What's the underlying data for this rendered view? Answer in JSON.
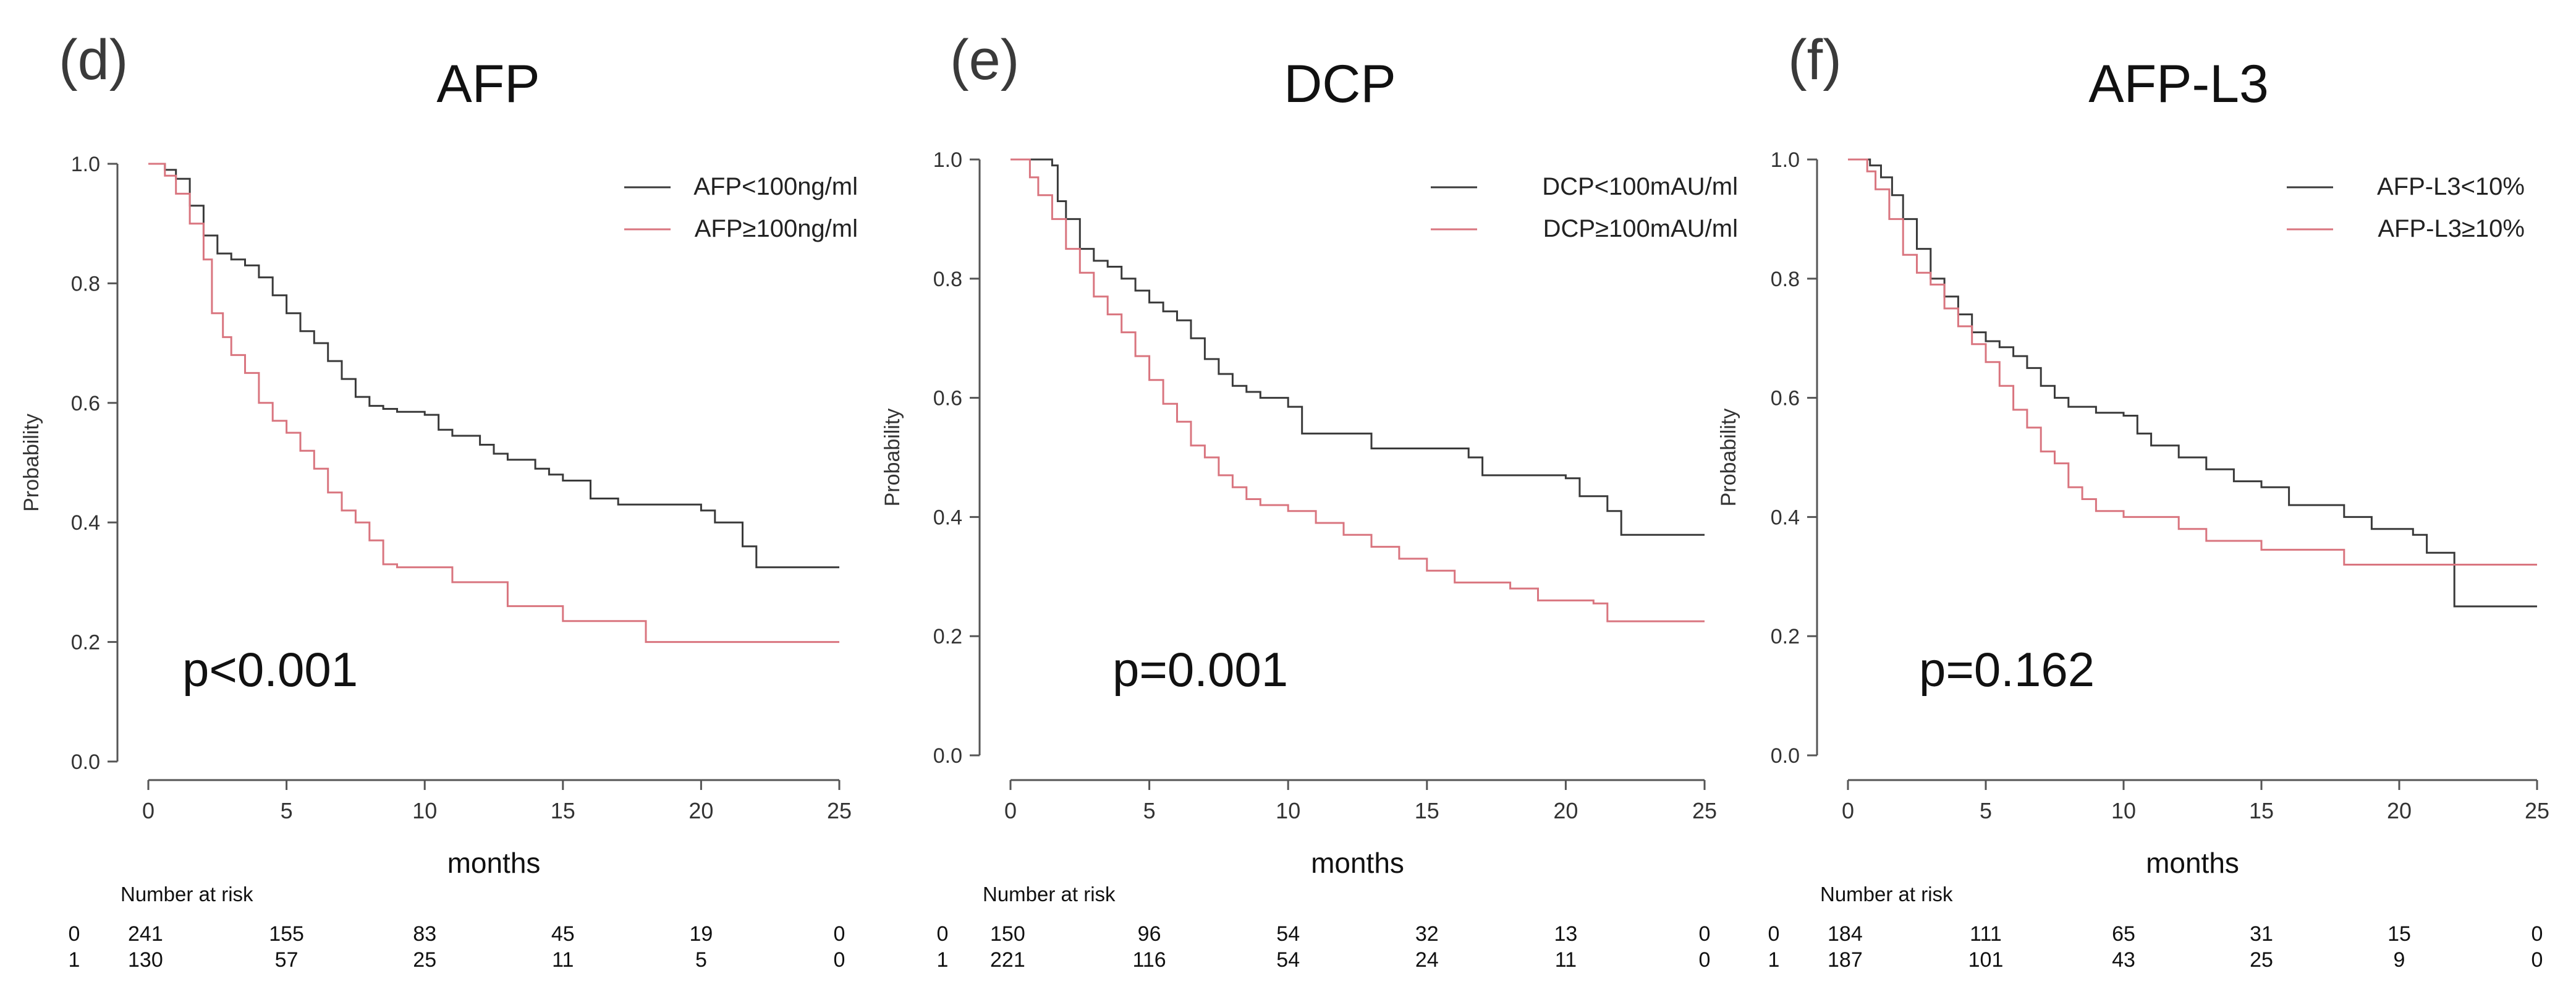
{
  "chart_data": [
    {
      "type": "line",
      "subtype": "kaplan-meier",
      "panel_label": "(d)",
      "title": "AFP",
      "xlabel": "months",
      "ylabel": "Probability",
      "xlim": [
        0,
        25
      ],
      "ylim": [
        0.0,
        1.0
      ],
      "x_ticks": [
        "0",
        "5",
        "10",
        "15",
        "20",
        "25"
      ],
      "y_ticks": [
        "0.0",
        "0.2",
        "0.4",
        "0.6",
        "0.8",
        "1.0"
      ],
      "grid": false,
      "legend_position": "top-right",
      "p_value": "p<0.001",
      "risk_table": {
        "title": "Number at risk",
        "rows": [
          {
            "group": "0",
            "values": [
              "241",
              "155",
              "83",
              "45",
              "19",
              "0"
            ]
          },
          {
            "group": "1",
            "values": [
              "130",
              "57",
              "25",
              "11",
              "5",
              "0"
            ]
          }
        ]
      },
      "series": [
        {
          "name": "AFP<100ng/ml",
          "color": "#3a3a3a",
          "points": [
            [
              0,
              1.0
            ],
            [
              0.6,
              0.99
            ],
            [
              1.0,
              0.975
            ],
            [
              1.5,
              0.93
            ],
            [
              2.0,
              0.88
            ],
            [
              2.5,
              0.85
            ],
            [
              3.0,
              0.84
            ],
            [
              3.5,
              0.83
            ],
            [
              4.0,
              0.81
            ],
            [
              4.5,
              0.78
            ],
            [
              5.0,
              0.75
            ],
            [
              5.5,
              0.72
            ],
            [
              6.0,
              0.7
            ],
            [
              6.5,
              0.67
            ],
            [
              7.0,
              0.64
            ],
            [
              7.5,
              0.61
            ],
            [
              8.0,
              0.595
            ],
            [
              8.5,
              0.59
            ],
            [
              9.0,
              0.585
            ],
            [
              10.0,
              0.58
            ],
            [
              10.5,
              0.555
            ],
            [
              11.0,
              0.545
            ],
            [
              12.0,
              0.53
            ],
            [
              12.5,
              0.515
            ],
            [
              13.0,
              0.505
            ],
            [
              14.0,
              0.49
            ],
            [
              14.5,
              0.48
            ],
            [
              15.0,
              0.47
            ],
            [
              16.0,
              0.44
            ],
            [
              17.0,
              0.43
            ],
            [
              18.0,
              0.43
            ],
            [
              20.0,
              0.42
            ],
            [
              20.5,
              0.4
            ],
            [
              21.5,
              0.36
            ],
            [
              22.0,
              0.325
            ],
            [
              25.0,
              0.325
            ]
          ]
        },
        {
          "name": "AFP≥100ng/ml",
          "color": "#d9757f",
          "points": [
            [
              0,
              1.0
            ],
            [
              0.6,
              0.98
            ],
            [
              1.0,
              0.95
            ],
            [
              1.5,
              0.9
            ],
            [
              2.0,
              0.84
            ],
            [
              2.3,
              0.75
            ],
            [
              2.7,
              0.71
            ],
            [
              3.0,
              0.68
            ],
            [
              3.5,
              0.65
            ],
            [
              4.0,
              0.6
            ],
            [
              4.5,
              0.57
            ],
            [
              5.0,
              0.55
            ],
            [
              5.5,
              0.52
            ],
            [
              6.0,
              0.49
            ],
            [
              6.5,
              0.45
            ],
            [
              7.0,
              0.42
            ],
            [
              7.5,
              0.4
            ],
            [
              8.0,
              0.37
            ],
            [
              8.5,
              0.33
            ],
            [
              9.0,
              0.325
            ],
            [
              11.0,
              0.3
            ],
            [
              13.0,
              0.26
            ],
            [
              15.0,
              0.235
            ],
            [
              18.0,
              0.2
            ],
            [
              25.0,
              0.2
            ]
          ]
        }
      ]
    },
    {
      "type": "line",
      "subtype": "kaplan-meier",
      "panel_label": "(e)",
      "title": "DCP",
      "xlabel": "months",
      "ylabel": "Probability",
      "xlim": [
        0,
        25
      ],
      "ylim": [
        0.0,
        1.0
      ],
      "x_ticks": [
        "0",
        "5",
        "10",
        "15",
        "20",
        "25"
      ],
      "y_ticks": [
        "0.0",
        "0.2",
        "0.4",
        "0.6",
        "0.8",
        "1.0"
      ],
      "grid": false,
      "legend_position": "top-right",
      "p_value": "p=0.001",
      "risk_table": {
        "title": "Number at risk",
        "rows": [
          {
            "group": "0",
            "values": [
              "150",
              "96",
              "54",
              "32",
              "13",
              "0"
            ]
          },
          {
            "group": "1",
            "values": [
              "221",
              "116",
              "54",
              "24",
              "11",
              "0"
            ]
          }
        ]
      },
      "series": [
        {
          "name": "DCP<100mAU/ml",
          "color": "#3a3a3a",
          "points": [
            [
              0,
              1.0
            ],
            [
              1.5,
              0.99
            ],
            [
              1.7,
              0.93
            ],
            [
              2.0,
              0.9
            ],
            [
              2.5,
              0.85
            ],
            [
              3.0,
              0.83
            ],
            [
              3.5,
              0.82
            ],
            [
              4.0,
              0.8
            ],
            [
              4.5,
              0.78
            ],
            [
              5.0,
              0.76
            ],
            [
              5.5,
              0.745
            ],
            [
              6.0,
              0.73
            ],
            [
              6.5,
              0.7
            ],
            [
              7.0,
              0.665
            ],
            [
              7.5,
              0.64
            ],
            [
              8.0,
              0.62
            ],
            [
              8.5,
              0.61
            ],
            [
              9.0,
              0.6
            ],
            [
              10.0,
              0.585
            ],
            [
              10.5,
              0.54
            ],
            [
              12.0,
              0.54
            ],
            [
              13.0,
              0.515
            ],
            [
              16.5,
              0.5
            ],
            [
              17.0,
              0.47
            ],
            [
              20.0,
              0.465
            ],
            [
              20.5,
              0.435
            ],
            [
              21.5,
              0.41
            ],
            [
              22.0,
              0.37
            ],
            [
              25.0,
              0.37
            ]
          ]
        },
        {
          "name": "DCP≥100mAU/ml",
          "color": "#d9757f",
          "points": [
            [
              0,
              1.0
            ],
            [
              0.7,
              0.97
            ],
            [
              1.0,
              0.94
            ],
            [
              1.5,
              0.9
            ],
            [
              2.0,
              0.85
            ],
            [
              2.5,
              0.81
            ],
            [
              3.0,
              0.77
            ],
            [
              3.5,
              0.74
            ],
            [
              4.0,
              0.71
            ],
            [
              4.5,
              0.67
            ],
            [
              5.0,
              0.63
            ],
            [
              5.5,
              0.59
            ],
            [
              6.0,
              0.56
            ],
            [
              6.5,
              0.52
            ],
            [
              7.0,
              0.5
            ],
            [
              7.5,
              0.47
            ],
            [
              8.0,
              0.45
            ],
            [
              8.5,
              0.43
            ],
            [
              9.0,
              0.42
            ],
            [
              10.0,
              0.41
            ],
            [
              11.0,
              0.39
            ],
            [
              12.0,
              0.37
            ],
            [
              13.0,
              0.35
            ],
            [
              14.0,
              0.33
            ],
            [
              15.0,
              0.31
            ],
            [
              16.0,
              0.29
            ],
            [
              17.5,
              0.29
            ],
            [
              18.0,
              0.28
            ],
            [
              19.0,
              0.26
            ],
            [
              21.0,
              0.255
            ],
            [
              21.5,
              0.225
            ],
            [
              25.0,
              0.225
            ]
          ]
        }
      ]
    },
    {
      "type": "line",
      "subtype": "kaplan-meier",
      "panel_label": "(f)",
      "title": "AFP-L3",
      "xlabel": "months",
      "ylabel": "Probability",
      "xlim": [
        0,
        25
      ],
      "ylim": [
        0.0,
        1.0
      ],
      "x_ticks": [
        "0",
        "5",
        "10",
        "15",
        "20",
        "25"
      ],
      "y_ticks": [
        "0.0",
        "0.2",
        "0.4",
        "0.6",
        "0.8",
        "1.0"
      ],
      "grid": false,
      "legend_position": "top-right",
      "p_value": "p=0.162",
      "risk_table": {
        "title": "Number at risk",
        "rows": [
          {
            "group": "0",
            "values": [
              "184",
              "111",
              "65",
              "31",
              "15",
              "0"
            ]
          },
          {
            "group": "1",
            "values": [
              "187",
              "101",
              "43",
              "25",
              "9",
              "0"
            ]
          }
        ]
      },
      "series": [
        {
          "name": "AFP-L3<10%",
          "color": "#3a3a3a",
          "points": [
            [
              0,
              1.0
            ],
            [
              0.8,
              0.99
            ],
            [
              1.2,
              0.97
            ],
            [
              1.6,
              0.94
            ],
            [
              2.0,
              0.9
            ],
            [
              2.5,
              0.85
            ],
            [
              3.0,
              0.8
            ],
            [
              3.5,
              0.77
            ],
            [
              4.0,
              0.74
            ],
            [
              4.5,
              0.71
            ],
            [
              5.0,
              0.695
            ],
            [
              5.5,
              0.685
            ],
            [
              6.0,
              0.67
            ],
            [
              6.5,
              0.65
            ],
            [
              7.0,
              0.62
            ],
            [
              7.5,
              0.6
            ],
            [
              8.0,
              0.585
            ],
            [
              9.0,
              0.575
            ],
            [
              10.0,
              0.57
            ],
            [
              10.5,
              0.54
            ],
            [
              11.0,
              0.52
            ],
            [
              12.0,
              0.5
            ],
            [
              13.0,
              0.48
            ],
            [
              14.0,
              0.46
            ],
            [
              15.0,
              0.45
            ],
            [
              16.0,
              0.42
            ],
            [
              18.0,
              0.4
            ],
            [
              19.0,
              0.38
            ],
            [
              20.5,
              0.37
            ],
            [
              21.0,
              0.34
            ],
            [
              22.0,
              0.25
            ],
            [
              25.0,
              0.25
            ]
          ]
        },
        {
          "name": "AFP-L3≥10%",
          "color": "#d9757f",
          "points": [
            [
              0,
              1.0
            ],
            [
              0.7,
              0.98
            ],
            [
              1.0,
              0.95
            ],
            [
              1.5,
              0.9
            ],
            [
              2.0,
              0.84
            ],
            [
              2.5,
              0.81
            ],
            [
              3.0,
              0.79
            ],
            [
              3.5,
              0.75
            ],
            [
              4.0,
              0.72
            ],
            [
              4.5,
              0.69
            ],
            [
              5.0,
              0.66
            ],
            [
              5.5,
              0.62
            ],
            [
              6.0,
              0.58
            ],
            [
              6.5,
              0.55
            ],
            [
              7.0,
              0.51
            ],
            [
              7.5,
              0.49
            ],
            [
              8.0,
              0.45
            ],
            [
              8.5,
              0.43
            ],
            [
              9.0,
              0.41
            ],
            [
              10.0,
              0.4
            ],
            [
              12.0,
              0.38
            ],
            [
              13.0,
              0.36
            ],
            [
              15.0,
              0.345
            ],
            [
              16.0,
              0.345
            ],
            [
              18.0,
              0.32
            ],
            [
              22.0,
              0.32
            ],
            [
              25.0,
              0.32
            ]
          ]
        }
      ]
    }
  ]
}
